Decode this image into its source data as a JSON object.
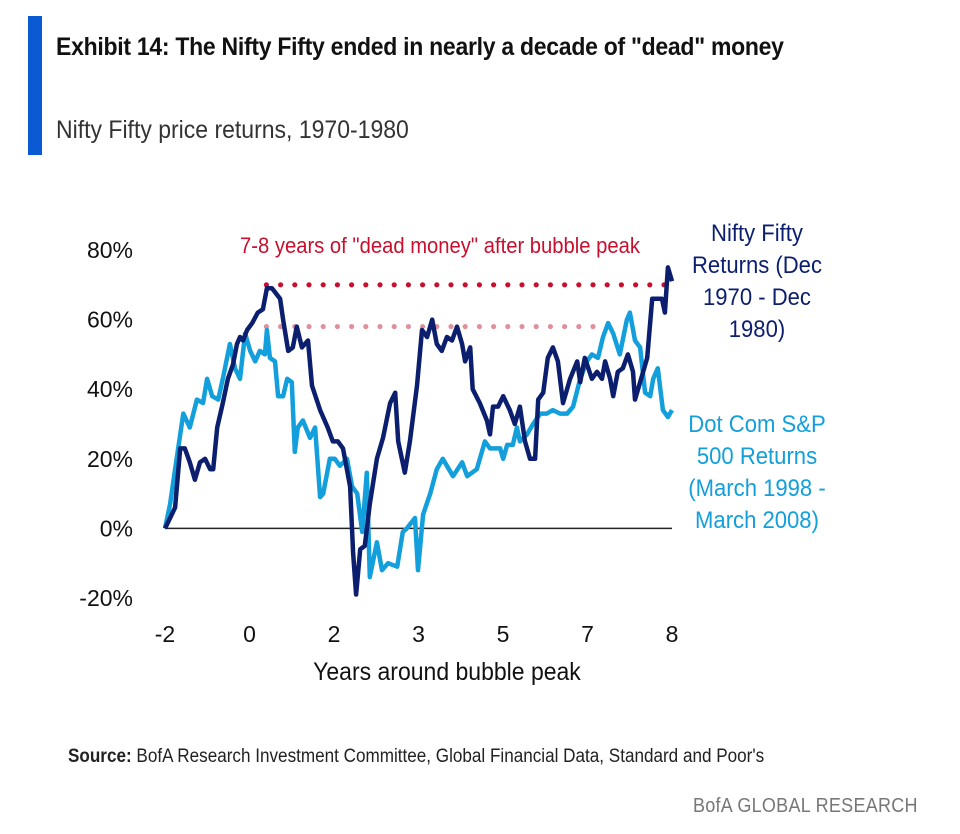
{
  "header": {
    "title": "Exhibit 14: The Nifty Fifty ended in nearly a decade of \"dead\" money",
    "subtitle": "Nifty Fifty price returns, 1970-1980"
  },
  "footer": {
    "source_label": "Source:",
    "source_text": "BofA Research Investment Committee, Global Financial Data, Standard and Poor's",
    "brand": "BofA GLOBAL RESEARCH"
  },
  "colors": {
    "accent_bar": "#0a5bd3",
    "nifty": "#0c1f6e",
    "dotcom": "#139fdb",
    "annotation": "#c8102e",
    "peak_line": "#c8102e",
    "secondary_peak_line": "#e0909c"
  },
  "chart_data": {
    "type": "line",
    "xlabel": "Years around bubble peak",
    "ylabel": "",
    "xlim": [
      -2,
      8
    ],
    "ylim": [
      -20,
      80
    ],
    "x_tick_labels": [
      "-2",
      "0",
      "2",
      "3",
      "5",
      "7",
      "8"
    ],
    "y_ticks": [
      80,
      60,
      40,
      20,
      0,
      -20
    ],
    "y_tick_labels": [
      "80%",
      "60%",
      "40%",
      "20%",
      "0%",
      "-20%"
    ],
    "grid": false,
    "annotation": "7-8 years of \"dead money\" after bubble peak",
    "reference_lines": [
      {
        "y": 70,
        "x": [
          0,
          8
        ],
        "style": "dotted"
      },
      {
        "y": 58,
        "x": [
          0,
          6.9
        ],
        "style": "dotted"
      }
    ],
    "series": [
      {
        "name": "Nifty Fifty Returns (Dec 1970 - Dec 1980)",
        "color": "#0c1f6e",
        "points": [
          [
            -2,
            0
          ],
          [
            -1.9,
            3
          ],
          [
            -1.8,
            6
          ],
          [
            -1.7,
            23
          ],
          [
            -1.61,
            23
          ],
          [
            -1.51,
            19
          ],
          [
            -1.41,
            14
          ],
          [
            -1.31,
            19
          ],
          [
            -1.21,
            20
          ],
          [
            -1.11,
            17
          ],
          [
            -1.05,
            17
          ],
          [
            -0.97,
            29
          ],
          [
            -0.86,
            36
          ],
          [
            -0.76,
            43
          ],
          [
            -0.66,
            47
          ],
          [
            -0.58,
            53
          ],
          [
            -0.52,
            55
          ],
          [
            -0.46,
            54
          ],
          [
            -0.38,
            57
          ],
          [
            -0.28,
            59
          ],
          [
            -0.17,
            62
          ],
          [
            -0.07,
            63
          ],
          [
            0.01,
            69
          ],
          [
            0.11,
            69
          ],
          [
            0.27,
            66
          ],
          [
            0.33,
            60
          ],
          [
            0.43,
            51
          ],
          [
            0.52,
            52
          ],
          [
            0.6,
            58
          ],
          [
            0.7,
            52
          ],
          [
            0.82,
            54
          ],
          [
            0.9,
            41
          ],
          [
            1.06,
            34
          ],
          [
            1.21,
            29
          ],
          [
            1.31,
            25
          ],
          [
            1.41,
            25
          ],
          [
            1.51,
            23
          ],
          [
            1.65,
            12
          ],
          [
            1.71,
            -7
          ],
          [
            1.77,
            -19
          ],
          [
            1.85,
            -6
          ],
          [
            1.94,
            -5
          ],
          [
            2.04,
            7
          ],
          [
            2.18,
            20
          ],
          [
            2.3,
            26
          ],
          [
            2.44,
            36
          ],
          [
            2.54,
            39
          ],
          [
            2.6,
            25
          ],
          [
            2.73,
            16
          ],
          [
            2.83,
            25
          ],
          [
            2.97,
            41
          ],
          [
            3.07,
            57
          ],
          [
            3.17,
            55
          ],
          [
            3.27,
            60
          ],
          [
            3.36,
            53
          ],
          [
            3.46,
            51
          ],
          [
            3.56,
            55
          ],
          [
            3.66,
            54
          ],
          [
            3.76,
            58
          ],
          [
            3.86,
            53
          ],
          [
            3.92,
            48
          ],
          [
            4.02,
            52
          ],
          [
            4.07,
            40
          ],
          [
            4.21,
            36
          ],
          [
            4.35,
            31
          ],
          [
            4.41,
            27
          ],
          [
            4.47,
            35
          ],
          [
            4.57,
            35
          ],
          [
            4.67,
            38
          ],
          [
            4.8,
            34
          ],
          [
            4.9,
            30
          ],
          [
            5.0,
            35
          ],
          [
            5.1,
            25
          ],
          [
            5.2,
            20
          ],
          [
            5.3,
            20
          ],
          [
            5.36,
            37
          ],
          [
            5.46,
            39
          ],
          [
            5.55,
            49
          ],
          [
            5.65,
            52
          ],
          [
            5.75,
            48
          ],
          [
            5.85,
            36
          ],
          [
            5.99,
            43
          ],
          [
            6.13,
            48
          ],
          [
            6.19,
            42
          ],
          [
            6.28,
            49
          ],
          [
            6.42,
            43
          ],
          [
            6.52,
            45
          ],
          [
            6.62,
            43
          ],
          [
            6.68,
            48
          ],
          [
            6.78,
            43
          ],
          [
            6.84,
            38
          ],
          [
            6.93,
            45
          ],
          [
            7.03,
            46
          ],
          [
            7.13,
            50
          ],
          [
            7.23,
            45
          ],
          [
            7.27,
            37
          ],
          [
            7.37,
            42
          ],
          [
            7.51,
            49
          ],
          [
            7.61,
            66
          ],
          [
            7.72,
            66
          ],
          [
            7.8,
            66
          ],
          [
            7.86,
            62
          ],
          [
            7.92,
            75
          ],
          [
            8.0,
            71
          ]
        ]
      },
      {
        "name": "Dot Com S&P 500 Returns (March 1998 - March 2008)",
        "color": "#139fdb",
        "points": [
          [
            -2,
            0
          ],
          [
            -1.9,
            7
          ],
          [
            -1.8,
            17
          ],
          [
            -1.64,
            33
          ],
          [
            -1.51,
            29
          ],
          [
            -1.37,
            37
          ],
          [
            -1.25,
            36
          ],
          [
            -1.17,
            43
          ],
          [
            -1.07,
            38
          ],
          [
            -0.95,
            37
          ],
          [
            -0.86,
            43
          ],
          [
            -0.72,
            53
          ],
          [
            -0.62,
            46
          ],
          [
            -0.52,
            43
          ],
          [
            -0.42,
            56
          ],
          [
            -0.32,
            51
          ],
          [
            -0.22,
            48
          ],
          [
            -0.13,
            51
          ],
          [
            -0.03,
            50
          ],
          [
            0.01,
            57
          ],
          [
            0.07,
            49
          ],
          [
            0.17,
            48
          ],
          [
            0.23,
            38
          ],
          [
            0.33,
            38
          ],
          [
            0.41,
            43
          ],
          [
            0.5,
            42
          ],
          [
            0.56,
            22
          ],
          [
            0.62,
            29
          ],
          [
            0.72,
            31
          ],
          [
            0.86,
            26
          ],
          [
            0.96,
            29
          ],
          [
            1.06,
            9
          ],
          [
            1.12,
            10
          ],
          [
            1.25,
            20
          ],
          [
            1.35,
            20
          ],
          [
            1.45,
            18
          ],
          [
            1.59,
            20
          ],
          [
            1.69,
            12
          ],
          [
            1.79,
            10
          ],
          [
            1.89,
            -1
          ],
          [
            1.98,
            16
          ],
          [
            2.04,
            -14
          ],
          [
            2.18,
            -4
          ],
          [
            2.28,
            -12
          ],
          [
            2.4,
            -10
          ],
          [
            2.58,
            -11
          ],
          [
            2.69,
            -1
          ],
          [
            2.77,
            0
          ],
          [
            2.93,
            3
          ],
          [
            2.99,
            -12
          ],
          [
            3.09,
            4
          ],
          [
            3.23,
            10
          ],
          [
            3.36,
            17
          ],
          [
            3.48,
            20
          ],
          [
            3.68,
            15
          ],
          [
            3.86,
            19
          ],
          [
            3.96,
            15
          ],
          [
            4.15,
            17
          ],
          [
            4.31,
            25
          ],
          [
            4.41,
            23
          ],
          [
            4.61,
            23
          ],
          [
            4.67,
            20
          ],
          [
            4.75,
            24
          ],
          [
            4.86,
            24
          ],
          [
            4.94,
            29
          ],
          [
            5.0,
            25
          ],
          [
            5.14,
            27
          ],
          [
            5.26,
            30
          ],
          [
            5.4,
            33
          ],
          [
            5.53,
            33
          ],
          [
            5.65,
            34
          ],
          [
            5.79,
            33
          ],
          [
            5.93,
            33
          ],
          [
            6.05,
            35
          ],
          [
            6.19,
            43
          ],
          [
            6.32,
            48
          ],
          [
            6.42,
            50
          ],
          [
            6.54,
            49
          ],
          [
            6.64,
            55
          ],
          [
            6.74,
            59
          ],
          [
            6.84,
            56
          ],
          [
            6.97,
            50
          ],
          [
            7.11,
            60
          ],
          [
            7.17,
            62
          ],
          [
            7.27,
            54
          ],
          [
            7.37,
            52
          ],
          [
            7.47,
            39
          ],
          [
            7.57,
            38
          ],
          [
            7.63,
            43
          ],
          [
            7.72,
            46
          ],
          [
            7.82,
            34
          ],
          [
            7.92,
            32
          ],
          [
            8.0,
            34
          ]
        ]
      }
    ],
    "legend": {
      "placement": "right",
      "nifty_lines": [
        "Nifty Fifty",
        "Returns (Dec",
        "1970 - Dec",
        "1980)"
      ],
      "dotcom_lines": [
        "Dot Com S&P",
        "500 Returns",
        "(March 1998 -",
        "March 2008)"
      ]
    }
  }
}
